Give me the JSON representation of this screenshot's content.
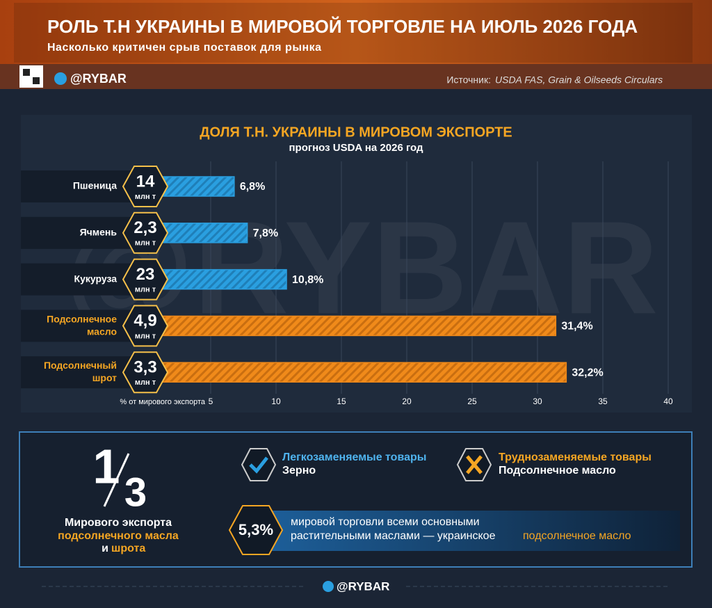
{
  "header": {
    "title": "РОЛЬ Т.Н УКРАИНЫ В МИРОВОЙ ТОРГОВЛЕ НА ИЮЛЬ 2026 ГОДА",
    "subtitle": "Насколько критичен срыв поставок для рынка",
    "brand": "@RYBAR",
    "source_label": "Источник:",
    "source": "USDA FAS, Grain & Oilseeds Circulars"
  },
  "chart_data": {
    "type": "bar",
    "orientation": "horizontal",
    "title": "ДОЛЯ Т.Н. УКРАИНЫ В МИРОВОМ ЭКСПОРТЕ",
    "subtitle": "прогноз USDA на 2026 год",
    "x_label": "% от мирового экспорта",
    "categories": [
      "Пшеница",
      "Ячмень",
      "Кукуруза",
      "Подсолнечное масло",
      "Подсолнечный шрот"
    ],
    "values": [
      6.8,
      7.8,
      10.8,
      31.4,
      32.2
    ],
    "value_labels": [
      "6,8%",
      "7,8%",
      "10,8%",
      "31,4%",
      "32,2%"
    ],
    "volume_labels": [
      "14",
      "2,3",
      "23",
      "4,9",
      "3,3"
    ],
    "volume_unit": "млн т",
    "colors": [
      "#2a9fe0",
      "#2a9fe0",
      "#2a9fe0",
      "#f08a1a",
      "#f08a1a"
    ],
    "xlim": [
      0,
      41
    ],
    "xticks": [
      5,
      10,
      15,
      20,
      25,
      30,
      35,
      40
    ],
    "grid": true
  },
  "summary": {
    "fraction_num": "1",
    "fraction_den": "3",
    "caption_1": "Мирового экспорта",
    "caption_2": "подсолнечного масла",
    "caption_3": "и",
    "caption_4": "шрота"
  },
  "easy": {
    "title": "Легкозаменяемые товары",
    "item": "Зерно"
  },
  "hard": {
    "title": "Труднозаменяемые товары",
    "item": "Подсолнечное масло"
  },
  "share": {
    "value": "5,3%",
    "text_1": "мировой торговли всеми основными",
    "text_2": "растительными маслами — украинское",
    "text_3": "подсолнечное масло"
  },
  "footer": {
    "brand": "@RYBAR"
  }
}
